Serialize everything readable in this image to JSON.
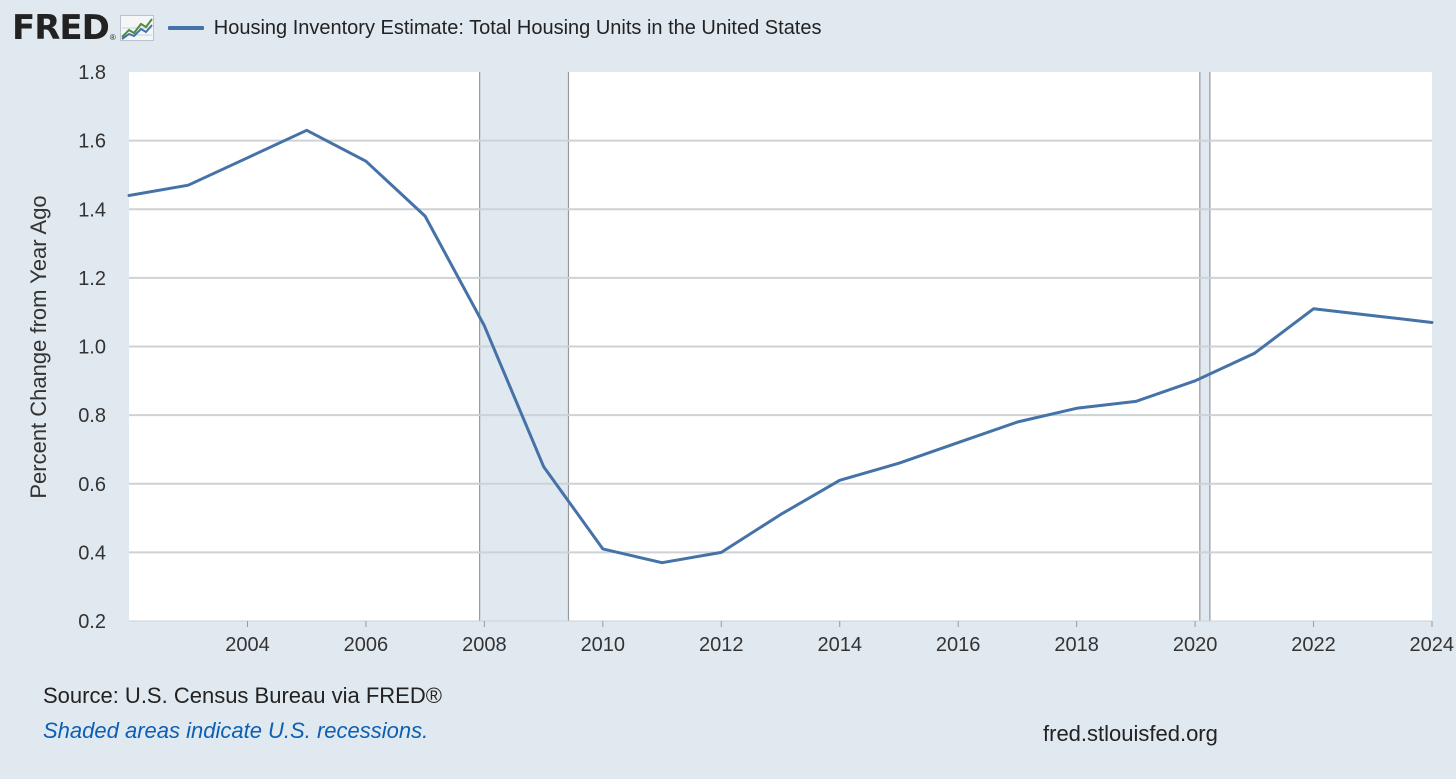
{
  "brand": {
    "logo_text": "FRED",
    "logo_reg": "®",
    "logo_icon": "trend-line-chart-icon"
  },
  "legend": {
    "label": "Housing Inventory Estimate: Total Housing Units in the United States",
    "color": "#4572a7"
  },
  "footer": {
    "source": "Source: U.S. Census Bureau via FRED®",
    "note": "Shaded areas indicate U.S. recessions.",
    "url": "fred.stlouisfed.org"
  },
  "chart_data": {
    "type": "line",
    "title": "Housing Inventory Estimate: Total Housing Units in the United States",
    "ylabel": "Percent Change from Year Ago",
    "xlabel": "",
    "xlim": [
      2002,
      2024
    ],
    "ylim": [
      0.2,
      1.8
    ],
    "yticks": [
      "0.2",
      "0.4",
      "0.6",
      "0.8",
      "1.0",
      "1.2",
      "1.4",
      "1.6",
      "1.8"
    ],
    "xticks": [
      "2004",
      "2006",
      "2008",
      "2010",
      "2012",
      "2014",
      "2016",
      "2018",
      "2020",
      "2022",
      "2024"
    ],
    "grid": true,
    "legend_position": "top-left",
    "recessions": [
      {
        "start": 2007.92,
        "end": 2009.42
      },
      {
        "start": 2020.08,
        "end": 2020.25
      }
    ],
    "series": [
      {
        "name": "Housing Inventory Estimate: Total Housing Units in the United States",
        "color": "#4572a7",
        "x": [
          2002,
          2003,
          2004,
          2005,
          2006,
          2007,
          2008,
          2009,
          2010,
          2011,
          2012,
          2013,
          2014,
          2015,
          2016,
          2017,
          2018,
          2019,
          2020,
          2021,
          2022,
          2023,
          2024
        ],
        "y": [
          1.44,
          1.47,
          1.55,
          1.63,
          1.54,
          1.38,
          1.06,
          0.65,
          0.41,
          0.37,
          0.4,
          0.51,
          0.61,
          0.66,
          0.72,
          0.78,
          0.82,
          0.84,
          0.9,
          0.98,
          1.11,
          1.09,
          1.07
        ]
      }
    ]
  }
}
